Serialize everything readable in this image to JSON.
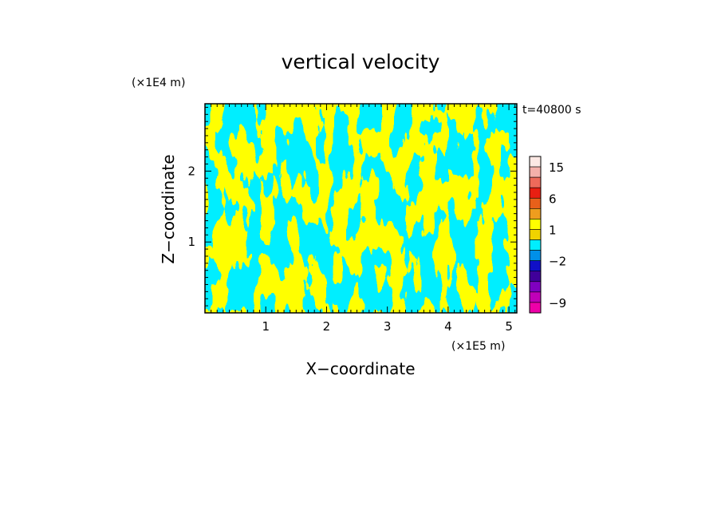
{
  "chart_data": {
    "type": "heatmap",
    "title": "vertical velocity",
    "xlabel": "X−coordinate",
    "ylabel": "Z−coordinate",
    "x_unit": "(×1E5 m)",
    "y_unit": "(×1E4 m)",
    "time_label": "t=40800 s",
    "xlim": [
      0,
      5.13
    ],
    "ylim": [
      0,
      2.95
    ],
    "x_ticks": [
      {
        "value": 1,
        "label": "1"
      },
      {
        "value": 2,
        "label": "2"
      },
      {
        "value": 3,
        "label": "3"
      },
      {
        "value": 4,
        "label": "4"
      },
      {
        "value": 5,
        "label": "5"
      }
    ],
    "y_ticks": [
      {
        "value": 1,
        "label": "1"
      },
      {
        "value": 2,
        "label": "2"
      }
    ],
    "field_colors": {
      "negative": "#00eeff",
      "positive": "#ffff00"
    },
    "colorbar": {
      "tick_labels": [
        {
          "level": 15,
          "label": "15"
        },
        {
          "level": 6,
          "label": "6"
        },
        {
          "level": 1,
          "label": "1"
        },
        {
          "level": -2,
          "label": "−2"
        },
        {
          "level": -9,
          "label": "−9"
        }
      ],
      "bins": [
        {
          "color": "#fce8e4",
          "from": 15,
          "to": 21
        },
        {
          "color": "#f4b0aa",
          "from": 12,
          "to": 15
        },
        {
          "color": "#ee6a5a",
          "from": 9,
          "to": 12
        },
        {
          "color": "#e81f12",
          "from": 6,
          "to": 9
        },
        {
          "color": "#e8601a",
          "from": 3,
          "to": 6
        },
        {
          "color": "#ee9d1e",
          "from": 2,
          "to": 3
        },
        {
          "color": "#ffff00",
          "from": 1,
          "to": 2
        },
        {
          "color": "#f0d200",
          "from": 0,
          "to": 1
        },
        {
          "color": "#00eeff",
          "from": -1,
          "to": 0
        },
        {
          "color": "#0090e8",
          "from": -2,
          "to": -1
        },
        {
          "color": "#1010c8",
          "from": -3,
          "to": -2
        },
        {
          "color": "#40009a",
          "from": -4,
          "to": -3
        },
        {
          "color": "#8000c0",
          "from": -6,
          "to": -4
        },
        {
          "color": "#c000b8",
          "from": -9,
          "to": -6
        },
        {
          "color": "#ee00a8",
          "from": -12,
          "to": -9
        }
      ]
    }
  }
}
